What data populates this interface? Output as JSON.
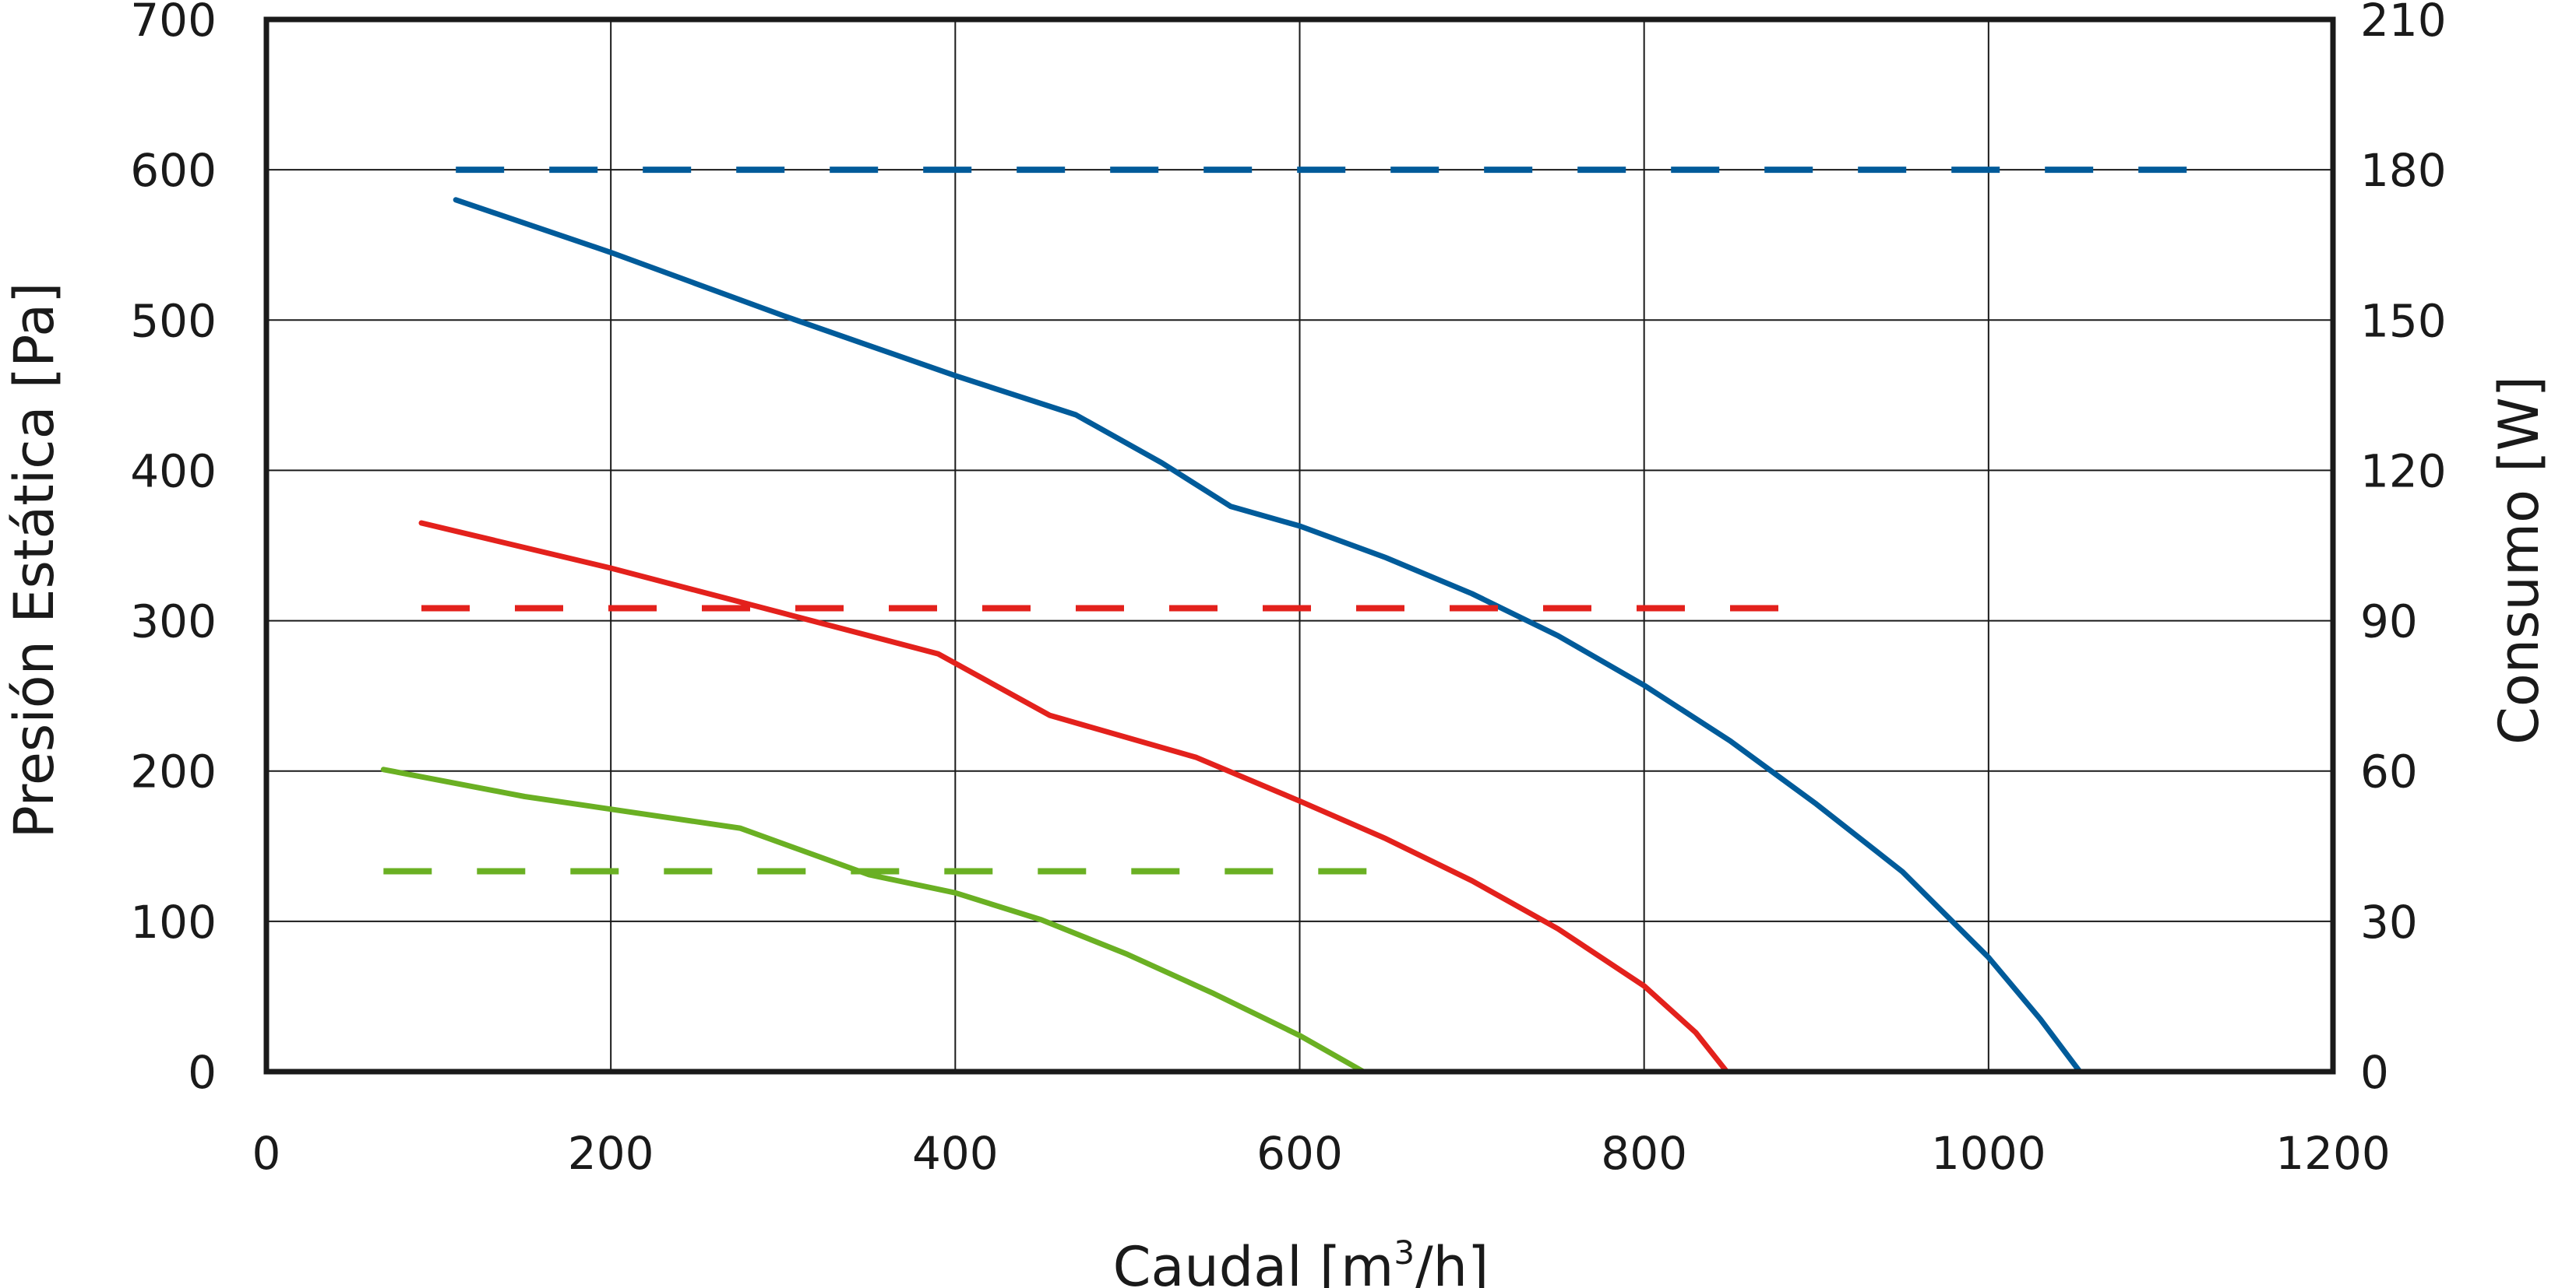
{
  "chart_data": {
    "type": "line",
    "title": "",
    "xlabel": "Caudal [m",
    "xlabel_sup": "3",
    "xlabel_tail": "/h]",
    "ylabel_left": "Presión Estática [Pa]",
    "ylabel_right": "Consumo [W]",
    "xlim": [
      0,
      1200
    ],
    "ylim_left": [
      0,
      700
    ],
    "ylim_right": [
      0,
      210
    ],
    "x_ticks": [
      "0",
      "200",
      "400",
      "600",
      "800",
      "1000",
      "1200"
    ],
    "y_left_ticks": [
      "0",
      "100",
      "200",
      "300",
      "400",
      "500",
      "600",
      "700"
    ],
    "y_right_ticks": [
      "0",
      "30",
      "60",
      "90",
      "120",
      "150",
      "180",
      "210"
    ],
    "grid": true,
    "series": [
      {
        "color": "#005b9a",
        "axis": "left",
        "style": "solid",
        "points": [
          [
            110,
            580
          ],
          [
            200,
            545
          ],
          [
            300,
            503
          ],
          [
            400,
            463
          ],
          [
            470,
            437
          ],
          [
            520,
            405
          ],
          [
            560,
            376
          ],
          [
            600,
            363
          ],
          [
            650,
            342
          ],
          [
            700,
            318
          ],
          [
            750,
            290
          ],
          [
            800,
            257
          ],
          [
            850,
            220
          ],
          [
            900,
            178
          ],
          [
            950,
            133
          ],
          [
            1000,
            76
          ],
          [
            1030,
            35
          ],
          [
            1053,
            0
          ]
        ]
      },
      {
        "color": "#e3211c",
        "axis": "left",
        "style": "solid",
        "points": [
          [
            90,
            365
          ],
          [
            200,
            335
          ],
          [
            300,
            305
          ],
          [
            390,
            278
          ],
          [
            455,
            237
          ],
          [
            540,
            209
          ],
          [
            600,
            180
          ],
          [
            650,
            155
          ],
          [
            700,
            127
          ],
          [
            750,
            95
          ],
          [
            800,
            57
          ],
          [
            830,
            26
          ],
          [
            848,
            0
          ]
        ]
      },
      {
        "color": "#6ab023",
        "axis": "left",
        "style": "solid",
        "points": [
          [
            68,
            201
          ],
          [
            150,
            183
          ],
          [
            275,
            162
          ],
          [
            350,
            131
          ],
          [
            400,
            119
          ],
          [
            450,
            101
          ],
          [
            500,
            78
          ],
          [
            550,
            52
          ],
          [
            600,
            24
          ],
          [
            637,
            0
          ]
        ]
      },
      {
        "color": "#005b9a",
        "axis": "right",
        "style": "dashed",
        "points": [
          [
            110,
            180
          ],
          [
            1120,
            180
          ]
        ]
      },
      {
        "color": "#e3211c",
        "axis": "right",
        "style": "dashed",
        "points": [
          [
            90,
            92.5
          ],
          [
            900,
            92.5
          ]
        ]
      },
      {
        "color": "#6ab023",
        "axis": "right",
        "style": "dashed",
        "points": [
          [
            68,
            40
          ],
          [
            660,
            40
          ]
        ]
      }
    ]
  }
}
